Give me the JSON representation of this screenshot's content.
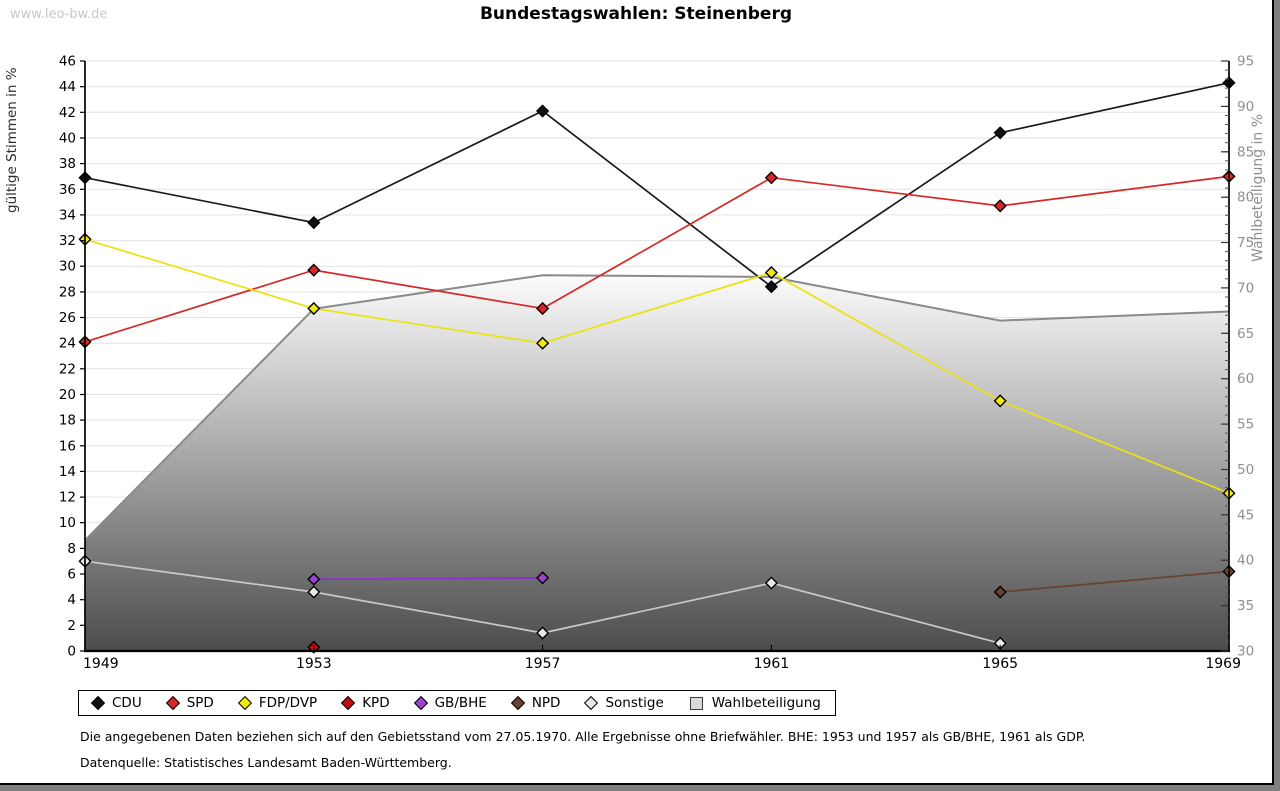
{
  "page": {
    "watermark": "www.leo-bw.de",
    "footnotes": [
      "Die angegebenen Daten beziehen sich auf den Gebietsstand vom 27.05.1970. Alle Ergebnisse ohne Briefwähler. BHE: 1953 und 1957 als GB/BHE, 1961 als GDP.",
      "Datenquelle: Statistisches Landesamt Baden-Württemberg."
    ]
  },
  "chart_data": {
    "type": "line",
    "title": "Bundestagswahlen: Steinenberg",
    "x": [
      1949,
      1953,
      1957,
      1961,
      1965,
      1969
    ],
    "left_axis": {
      "label": "gültige Stimmen in %",
      "min": 0,
      "max": 46,
      "step": 2
    },
    "right_axis": {
      "label": "Wahlbeteiligung in %",
      "min": 30,
      "max": 95,
      "step": 5,
      "minor_step": 1
    },
    "grid": true,
    "legend_position": "bottom",
    "series": [
      {
        "name": "CDU",
        "axis": "left",
        "marker": "diamond",
        "color": "#1a1a1a",
        "fill": "#111111",
        "values": [
          36.9,
          33.4,
          42.1,
          28.4,
          40.4,
          44.3
        ]
      },
      {
        "name": "SPD",
        "axis": "left",
        "marker": "diamond",
        "color": "#d62828",
        "fill": "#d62828",
        "values": [
          24.1,
          29.7,
          26.7,
          36.9,
          34.7,
          37.0
        ]
      },
      {
        "name": "FDP/DVP",
        "axis": "left",
        "marker": "diamond",
        "color": "#ece20e",
        "fill": "#f2ea0f",
        "values": [
          32.1,
          26.7,
          24.0,
          29.5,
          19.5,
          12.3
        ]
      },
      {
        "name": "KPD",
        "axis": "left",
        "marker": "diamond",
        "color": "#b50d0d",
        "fill": "#c00e0e",
        "values": [
          null,
          0.3,
          null,
          null,
          null,
          null
        ]
      },
      {
        "name": "GB/BHE",
        "axis": "left",
        "marker": "diamond",
        "color": "#8d2fd2",
        "fill": "#9c42cf",
        "values": [
          null,
          5.6,
          5.7,
          null,
          null,
          null
        ]
      },
      {
        "name": "NPD",
        "axis": "left",
        "marker": "diamond",
        "color": "#68422a",
        "fill": "#68422a",
        "values": [
          null,
          null,
          null,
          null,
          4.6,
          6.2
        ]
      },
      {
        "name": "Sonstige",
        "axis": "left",
        "marker": "diamond",
        "color": "#c9c9c9",
        "fill": "#e8e8e8",
        "values": [
          7.0,
          4.6,
          1.4,
          5.3,
          0.6,
          null
        ]
      },
      {
        "name": "Wahlbeteiligung",
        "axis": "right",
        "marker": "square",
        "color": "#8a8a8a",
        "fill": "#d9d9d9",
        "area": true,
        "values": [
          42.2,
          67.7,
          71.4,
          71.2,
          66.4,
          67.4
        ]
      }
    ],
    "area_gradient": {
      "top": "#fcfcfc",
      "bottom": "#4c4c4c"
    },
    "grid_color": "#e3e3e3",
    "right_axis_color": "#8f8f8f"
  }
}
